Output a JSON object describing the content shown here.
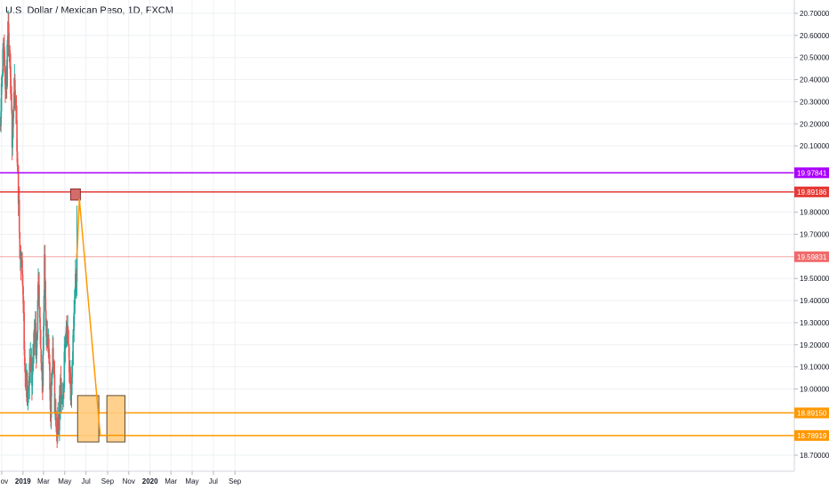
{
  "title": "U.S. Dollar / Mexican Peso, 1D, FXCM",
  "colors": {
    "up": "#26a69a",
    "down": "#ef5350",
    "grid": "#eef0f3",
    "orange": "#ff9800",
    "orange_fill": "#ffcc80",
    "purple": "#aa00ff",
    "red": "#e53935",
    "pink": "#f8a5a5",
    "resistance_box": "#d56c6c"
  },
  "chart_data": {
    "type": "candlestick",
    "y_ticks": [
      "20.70000",
      "20.60000",
      "20.50000",
      "20.40000",
      "20.30000",
      "20.20000",
      "20.10000",
      "19.90000",
      "19.80000",
      "19.70000",
      "19.50000",
      "19.40000",
      "19.30000",
      "19.20000",
      "19.10000",
      "19.00000",
      "18.70000"
    ],
    "x_ticks": [
      "Nov",
      "2019",
      "Mar",
      "May",
      "Jul",
      "Sep",
      "Nov",
      "2020",
      "Mar",
      "May",
      "Jul",
      "Sep"
    ],
    "ylim": [
      18.64,
      20.78
    ],
    "price_levels": [
      {
        "name": "level-purple",
        "value": 19.97841,
        "label": "19.97841",
        "color": "#aa00ff"
      },
      {
        "name": "level-red",
        "value": 19.89186,
        "label": "19.89186",
        "color": "#e53935"
      },
      {
        "name": "level-current",
        "value": 19.59831,
        "label": "19.59831",
        "color": "#f06a6a"
      },
      {
        "name": "level-orange-1",
        "value": 18.8915,
        "label": "18.89150",
        "color": "#ff9800"
      },
      {
        "name": "level-orange-2",
        "value": 18.78919,
        "label": "18.78919",
        "color": "#ff9800"
      }
    ],
    "annotations": {
      "resistance_zone": {
        "x_start": "2019-05-18",
        "x_end": "2019-06-15",
        "y_top": 19.905,
        "y_bottom": 19.855
      },
      "target_zones": [
        {
          "x_start": "2019-06-07",
          "x_end": "2019-08-07",
          "y_top": 18.97,
          "y_bottom": 18.76
        },
        {
          "x_start": "2019-08-30",
          "x_end": "2019-10-21",
          "y_top": 18.97,
          "y_bottom": 18.76
        }
      ],
      "projection_path": [
        {
          "x": "2019-06-05",
          "y": 19.59
        },
        {
          "x": "2019-06-12",
          "y": 19.86
        },
        {
          "x": "2019-08-11",
          "y": 18.79
        },
        {
          "x": "2019-10-21",
          "y": 18.79
        }
      ]
    },
    "anchor_dates": {
      "start": "2018-10-27",
      "end": "2019-06-05"
    },
    "anchor_prices": [
      20.2,
      20.45,
      20.55,
      20.35,
      20.6,
      20.4,
      20.15,
      20.35,
      20.25,
      19.9,
      19.6,
      19.55,
      19.2,
      19.0,
      18.95,
      19.15,
      19.05,
      19.3,
      19.2,
      19.45,
      19.15,
      19.05,
      19.55,
      19.25,
      19.15,
      18.9,
      19.2,
      18.95,
      18.8,
      18.85,
      19.0,
      18.9,
      19.2,
      19.3,
      19.15,
      19.0,
      19.2,
      19.4,
      19.6
    ],
    "last_candle": {
      "date": "2019-06-05",
      "open": 19.6,
      "high": 19.83,
      "low": 19.58,
      "close": 19.6
    }
  }
}
